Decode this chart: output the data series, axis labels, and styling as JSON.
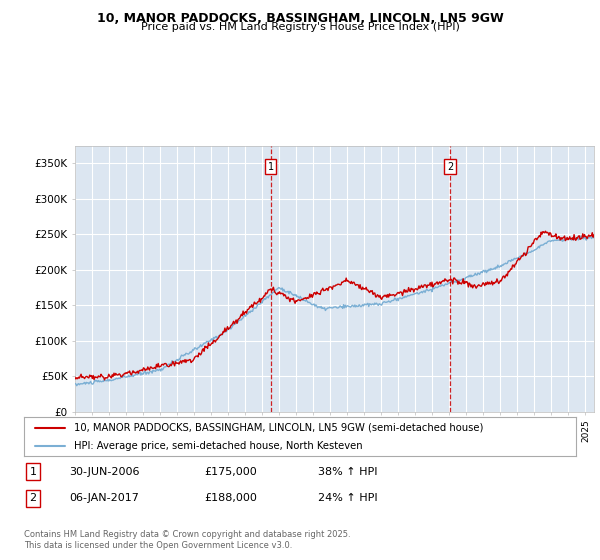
{
  "title_line1": "10, MANOR PADDOCKS, BASSINGHAM, LINCOLN, LN5 9GW",
  "title_line2": "Price paid vs. HM Land Registry's House Price Index (HPI)",
  "background_color": "#ffffff",
  "plot_bg_color": "#dce6f1",
  "grid_color": "#ffffff",
  "ylim": [
    0,
    375000
  ],
  "yticks": [
    0,
    50000,
    100000,
    150000,
    200000,
    250000,
    300000,
    350000
  ],
  "ytick_labels": [
    "£0",
    "£50K",
    "£100K",
    "£150K",
    "£200K",
    "£250K",
    "£300K",
    "£350K"
  ],
  "legend_label_red": "10, MANOR PADDOCKS, BASSINGHAM, LINCOLN, LN5 9GW (semi-detached house)",
  "legend_label_blue": "HPI: Average price, semi-detached house, North Kesteven",
  "footer_line1": "Contains HM Land Registry data © Crown copyright and database right 2025.",
  "footer_line2": "This data is licensed under the Open Government Licence v3.0.",
  "table_row1": [
    "1",
    "30-JUN-2006",
    "£175,000",
    "38% ↑ HPI"
  ],
  "table_row2": [
    "2",
    "06-JAN-2017",
    "£188,000",
    "24% ↑ HPI"
  ],
  "red_color": "#cc0000",
  "blue_color": "#7bafd4",
  "dashed_line_color": "#cc0000",
  "date1": 2006.5,
  "date2": 2017.04,
  "xmin": 1995,
  "xmax": 2025.5
}
